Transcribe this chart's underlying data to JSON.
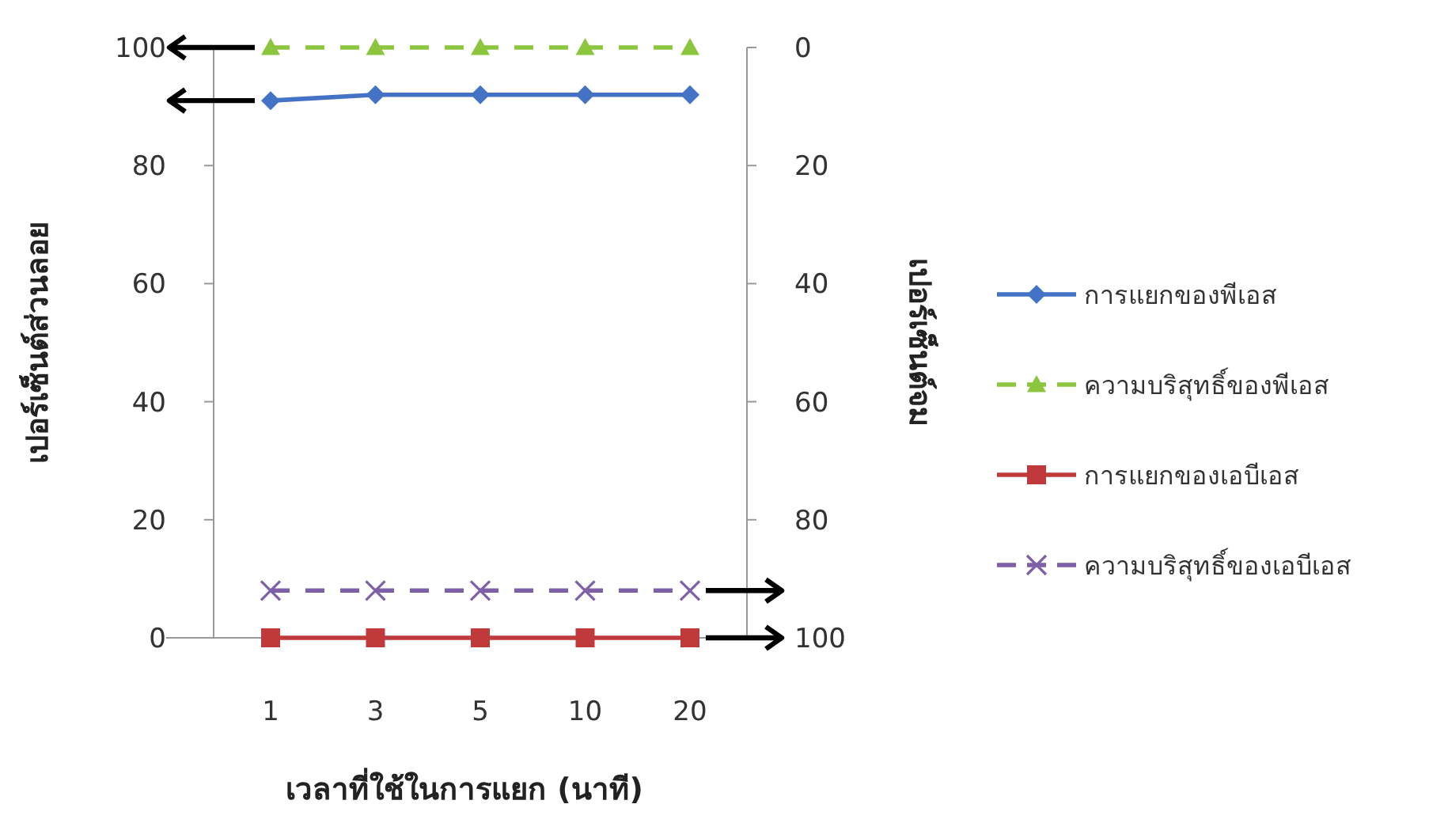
{
  "chart_data": {
    "type": "line",
    "xlabel": "เวลาที่ใช้ในการแยก (นาที)",
    "ylabel": "เปอร์เซ็นต์ส่วนลอย",
    "y2label": "เปอร์เซ็นต์จม",
    "categories": [
      "1",
      "3",
      "5",
      "10",
      "20"
    ],
    "ylim": [
      0,
      100
    ],
    "yticks": [
      0,
      20,
      40,
      60,
      80,
      100
    ],
    "y2lim": [
      100,
      0
    ],
    "y2ticks": [
      0,
      20,
      40,
      60,
      80,
      100
    ],
    "grid": false,
    "legend": "right",
    "series": [
      {
        "name": "การแยกของพีเอส",
        "color": "#4472c4",
        "marker": "diamond",
        "line_style": "solid",
        "values": [
          91,
          92,
          92,
          92,
          92
        ]
      },
      {
        "name": "ความบริสุทธิ์ของพีเอส",
        "color": "#8cc63f",
        "marker": "triangle",
        "line_style": "dashed",
        "values": [
          100,
          100,
          100,
          100,
          100
        ]
      },
      {
        "name": "การแยกของเอบีเอส",
        "color": "#c0393b",
        "marker": "square",
        "line_style": "solid",
        "axis": "y2",
        "values": [
          100,
          100,
          100,
          100,
          100
        ]
      },
      {
        "name": "ความบริสุทธิ์ของเอบีเอส",
        "color": "#7e5fa8",
        "marker": "cross",
        "line_style": "dashed",
        "axis": "y2",
        "values": [
          92,
          92,
          92,
          92,
          92
        ]
      }
    ]
  }
}
